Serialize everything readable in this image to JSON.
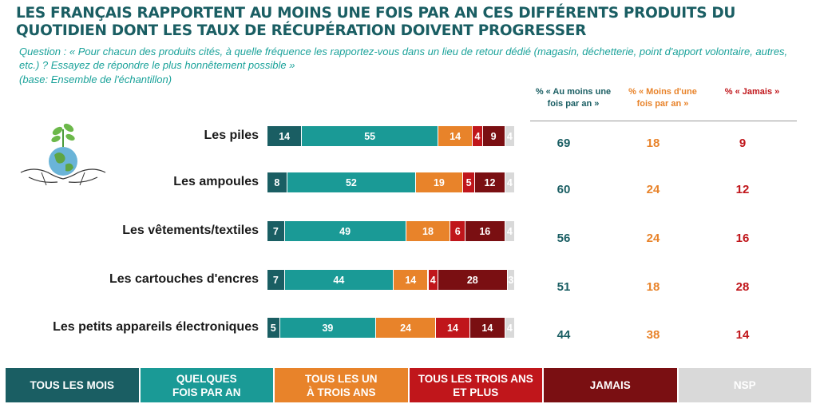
{
  "title": "LES FRANÇAIS RAPPORTENT AU MOINS UNE FOIS PAR AN CES DIFFÉRENTS PRODUITS DU QUOTIDIEN DONT LES TAUX DE RÉCUPÉRATION DOIVENT PROGRESSER",
  "question": "Question : « Pour chacun des produits cités, à quelle fréquence les rapportez-vous dans un lieu de retour dédié (magasin, déchetterie, point d'apport volontaire, autres, etc.) ? Essayez de répondre le plus honnêtement possible »",
  "base": "(base: Ensemble de l'échantillon)",
  "columns": [
    {
      "label": "% « Au moins une fois par an »",
      "color": "#1a5e63"
    },
    {
      "label": "% « Moins d'une fois par an »",
      "color": "#e8832a"
    },
    {
      "label": "% « Jamais »",
      "color": "#c0161b"
    }
  ],
  "colors": {
    "tous_les_mois": "#1a5e63",
    "quelques_fois": "#1a9a96",
    "un_a_trois": "#e8832a",
    "trois_plus": "#c0161b",
    "jamais": "#7a0f12",
    "nsp": "#d9d9d9"
  },
  "legend": [
    {
      "label": "TOUS LES MOIS",
      "color": "#1a5e63"
    },
    {
      "label": "QUELQUES FOIS PAR AN",
      "color": "#1a9a96"
    },
    {
      "label": "TOUS LES UN À TROIS ANS",
      "color": "#e8832a"
    },
    {
      "label": "TOUS LES TROIS ANS ET PLUS",
      "color": "#c0161b"
    },
    {
      "label": "JAMAIS",
      "color": "#7a0f12"
    },
    {
      "label": "NSP",
      "color": "#d9d9d9"
    }
  ],
  "chart_data": {
    "type": "bar",
    "orientation": "horizontal",
    "stacked": true,
    "categories": [
      "Les piles",
      "Les ampoules",
      "Les vêtements/textiles",
      "Les cartouches d'encres",
      "Les petits appareils électroniques"
    ],
    "series": [
      {
        "name": "TOUS LES MOIS",
        "values": [
          14,
          8,
          7,
          7,
          5
        ]
      },
      {
        "name": "QUELQUES FOIS PAR AN",
        "values": [
          55,
          52,
          49,
          44,
          39
        ]
      },
      {
        "name": "TOUS LES UN À TROIS ANS",
        "values": [
          14,
          19,
          18,
          14,
          24
        ]
      },
      {
        "name": "TOUS LES TROIS ANS ET PLUS",
        "values": [
          4,
          5,
          6,
          4,
          14
        ]
      },
      {
        "name": "JAMAIS",
        "values": [
          9,
          12,
          16,
          28,
          14
        ]
      },
      {
        "name": "NSP",
        "values": [
          4,
          4,
          4,
          3,
          4
        ]
      }
    ],
    "summary": {
      "au_moins_une_fois_par_an": [
        69,
        60,
        56,
        51,
        44
      ],
      "moins_d_une_fois_par_an": [
        18,
        24,
        24,
        18,
        38
      ],
      "jamais": [
        9,
        12,
        16,
        28,
        14
      ]
    },
    "xlim": [
      0,
      100
    ]
  }
}
